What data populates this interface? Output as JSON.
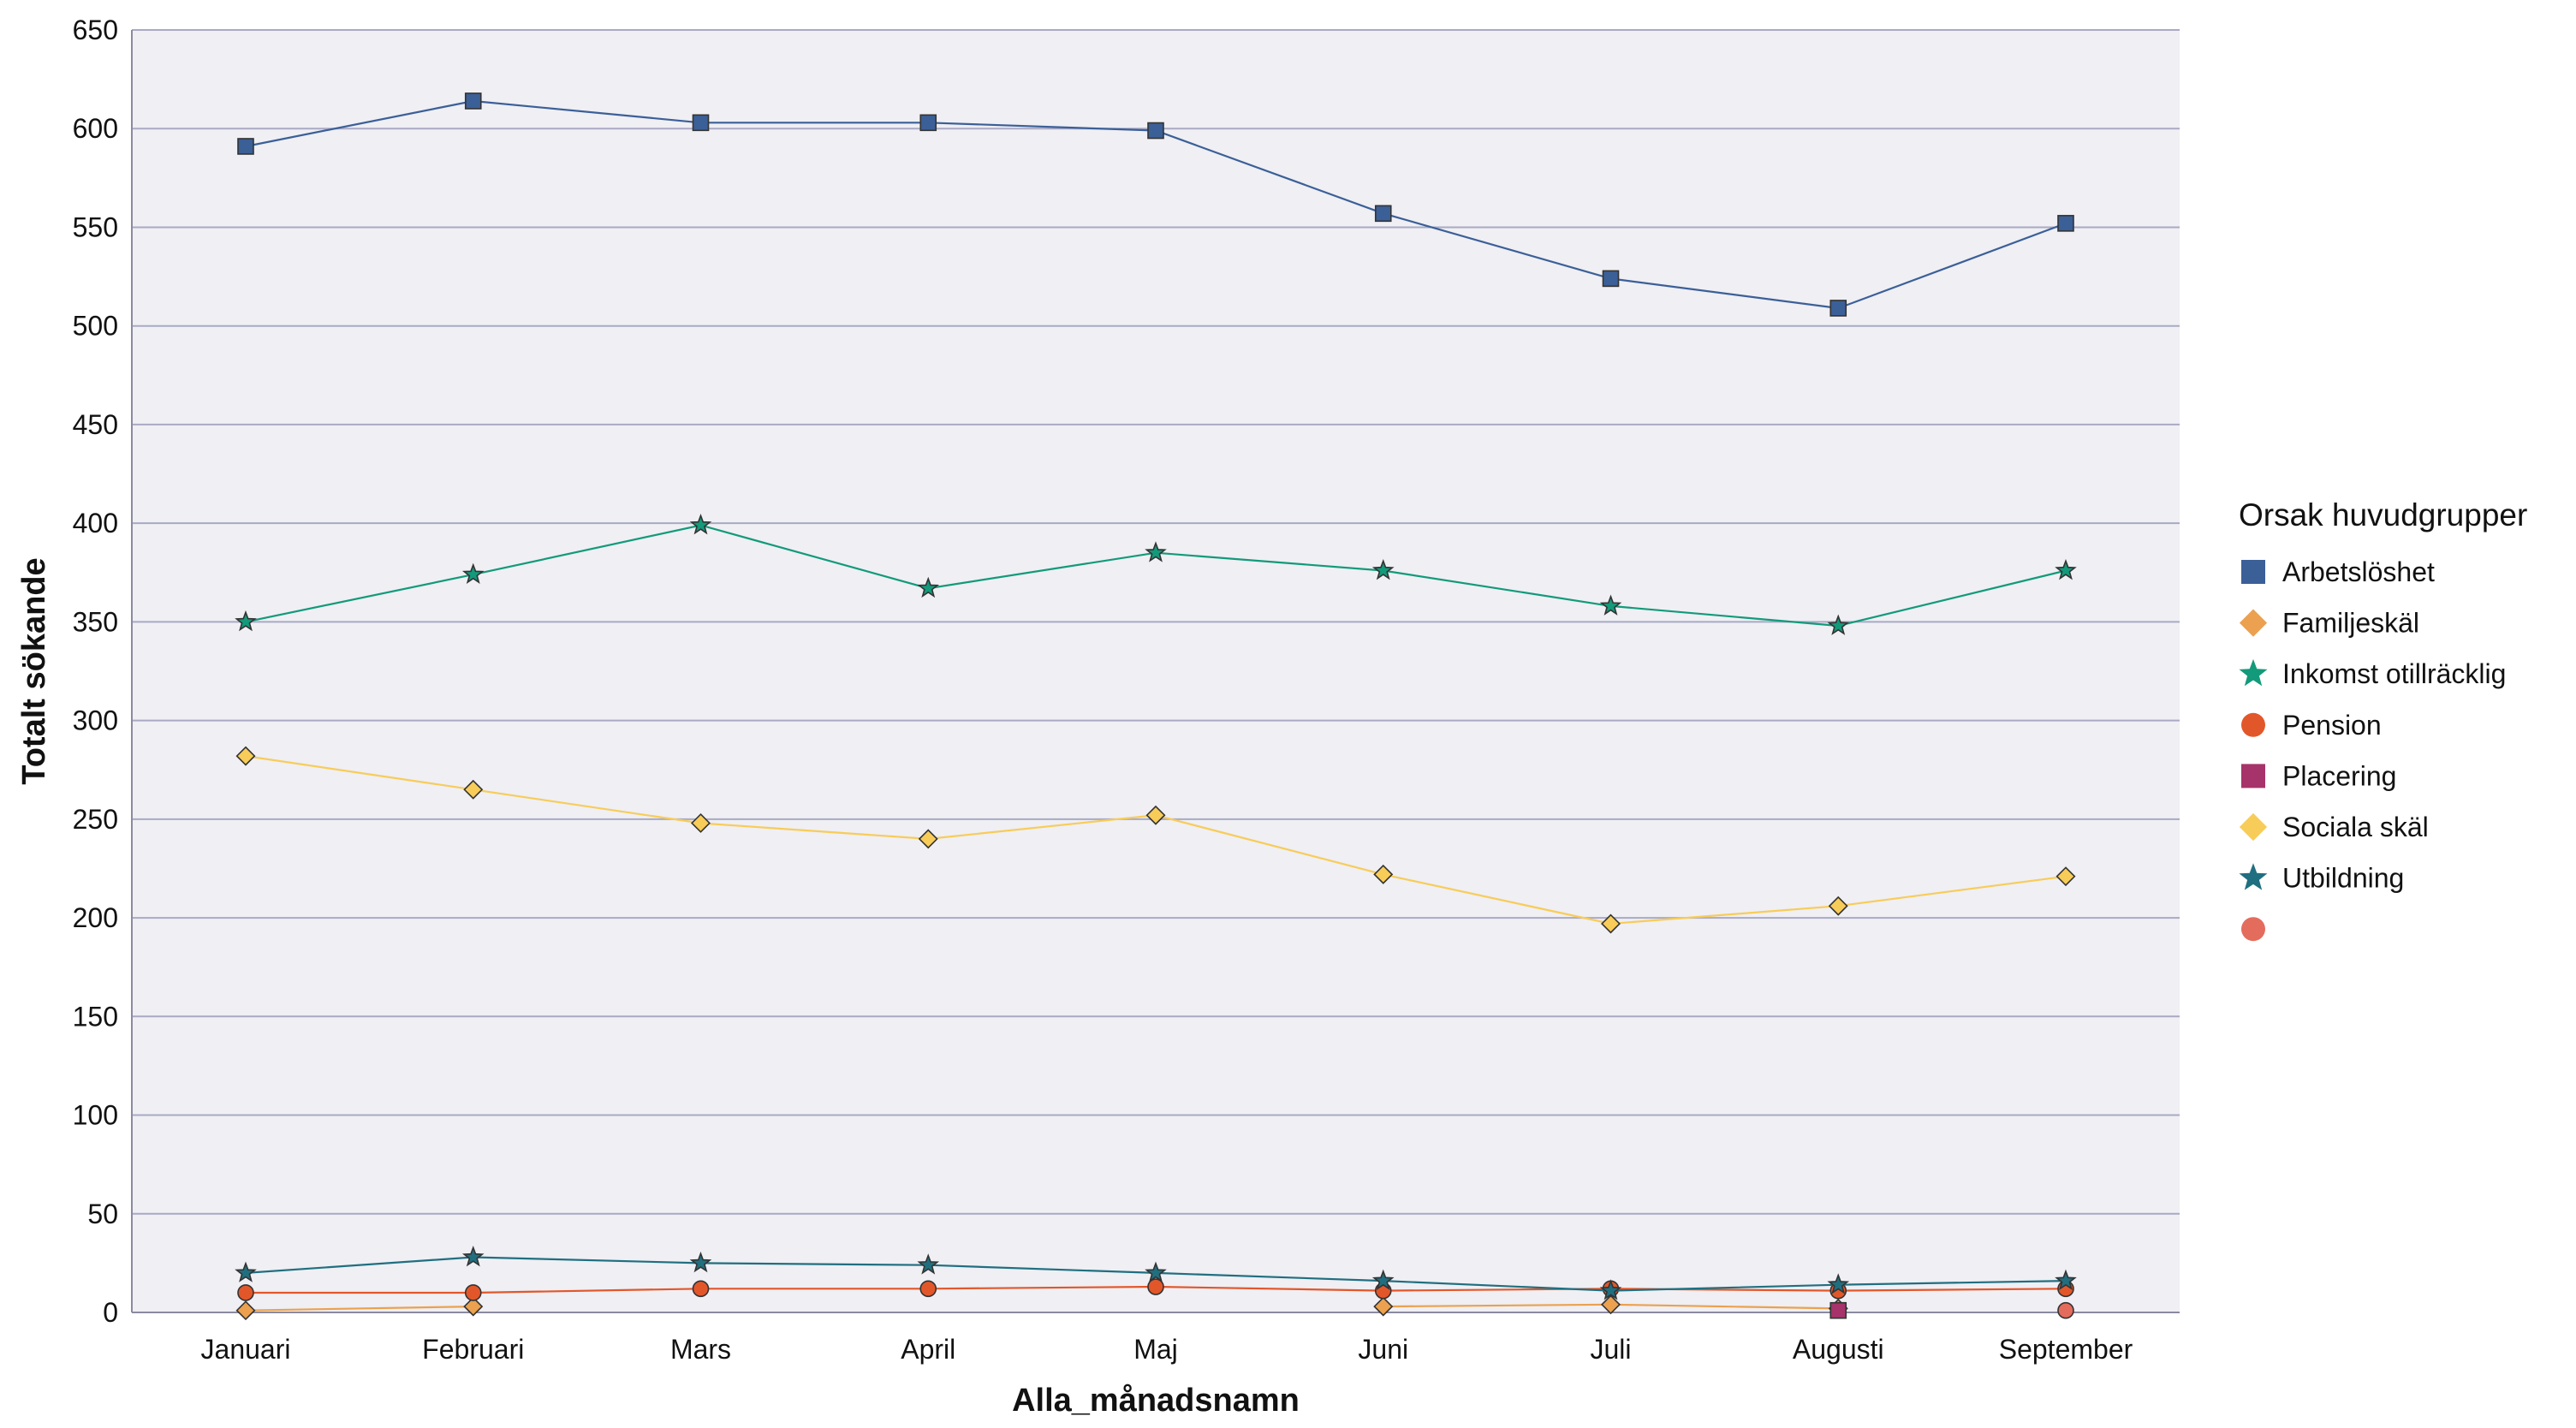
{
  "chart_data": {
    "type": "line",
    "xlabel": "Alla_månadsnamn",
    "ylabel": "Totalt sökande",
    "ylim": [
      0,
      650
    ],
    "yticks": [
      0,
      50,
      100,
      150,
      200,
      250,
      300,
      350,
      400,
      450,
      500,
      550,
      600,
      650
    ],
    "grid": true,
    "legend_position": "right",
    "legend_title": "Orsak huvudgrupper",
    "categories": [
      "Januari",
      "Februari",
      "Mars",
      "April",
      "Maj",
      "Juni",
      "Juli",
      "Augusti",
      "September"
    ],
    "series": [
      {
        "name": "Arbetslöshet",
        "color": "#3b5f97",
        "marker": "square",
        "line": true,
        "values": [
          591,
          614,
          603,
          603,
          599,
          557,
          524,
          509,
          552
        ]
      },
      {
        "name": "Familjeskäl",
        "color": "#eba14f",
        "marker": "diamond",
        "line": true,
        "values": [
          1,
          3,
          null,
          null,
          null,
          3,
          4,
          2,
          null
        ]
      },
      {
        "name": "Inkomst otillräcklig",
        "color": "#129a7a",
        "marker": "star",
        "line": true,
        "values": [
          350,
          374,
          399,
          367,
          385,
          376,
          358,
          348,
          376
        ]
      },
      {
        "name": "Pension",
        "color": "#e2572a",
        "marker": "circle",
        "line": true,
        "values": [
          10,
          10,
          12,
          12,
          13,
          11,
          12,
          11,
          12
        ]
      },
      {
        "name": "Placering",
        "color": "#a6336a",
        "marker": "square",
        "line": false,
        "values": [
          null,
          null,
          null,
          null,
          null,
          null,
          null,
          1,
          null
        ]
      },
      {
        "name": "Sociala skäl",
        "color": "#f8cc58",
        "marker": "diamond",
        "line": true,
        "values": [
          282,
          265,
          248,
          240,
          252,
          222,
          197,
          206,
          221
        ]
      },
      {
        "name": "Utbildning",
        "color": "#206f80",
        "marker": "star",
        "line": true,
        "values": [
          20,
          28,
          25,
          24,
          20,
          16,
          11,
          14,
          16
        ]
      },
      {
        "name": "",
        "color": "#e46c5d",
        "marker": "circle",
        "line": false,
        "values": [
          null,
          null,
          null,
          null,
          null,
          null,
          null,
          null,
          1
        ]
      }
    ]
  }
}
